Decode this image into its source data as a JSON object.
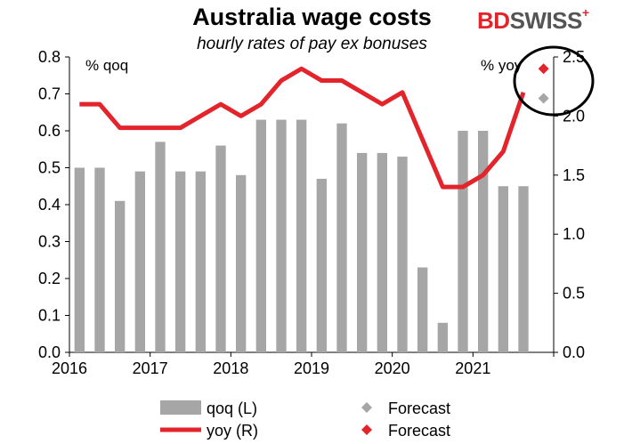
{
  "header": {
    "title": "Australia wage costs",
    "subtitle": "hourly rates of pay ex bonuses",
    "logo_bd": "BD",
    "logo_swiss": "SWISS",
    "logo_plus": "+"
  },
  "colors": {
    "bar": "#a6a6a6",
    "line": "#e3242b",
    "forecast_qoq": "#a6a6a6",
    "forecast_yoy": "#e3242b"
  },
  "chart_data": {
    "type": "bar",
    "left_unit": "% qoq",
    "right_unit": "% yoy",
    "ylim_left": [
      0,
      0.8
    ],
    "ylim_right": [
      0,
      2.5
    ],
    "yticks_left": [
      "0.0",
      "0.1",
      "0.2",
      "0.3",
      "0.4",
      "0.5",
      "0.6",
      "0.7",
      "0.8"
    ],
    "yticks_right": [
      "0.0",
      "0.5",
      "1.0",
      "1.5",
      "2.0",
      "2.5"
    ],
    "xticks": [
      "2016",
      "2017",
      "2018",
      "2019",
      "2020",
      "2021"
    ],
    "x": [
      "2016Q1",
      "2016Q2",
      "2016Q3",
      "2016Q4",
      "2017Q1",
      "2017Q2",
      "2017Q3",
      "2017Q4",
      "2018Q1",
      "2018Q2",
      "2018Q3",
      "2018Q4",
      "2019Q1",
      "2019Q2",
      "2019Q3",
      "2019Q4",
      "2020Q1",
      "2020Q2",
      "2020Q3",
      "2020Q4",
      "2021Q1",
      "2021Q2",
      "2021Q3"
    ],
    "series": [
      {
        "name": "qoq (L)",
        "type": "bar",
        "axis": "left",
        "values": [
          0.5,
          0.5,
          0.41,
          0.49,
          0.57,
          0.49,
          0.49,
          0.56,
          0.48,
          0.63,
          0.63,
          0.63,
          0.47,
          0.62,
          0.54,
          0.54,
          0.53,
          0.23,
          0.08,
          0.6,
          0.6,
          0.45,
          0.45
        ]
      },
      {
        "name": "yoy (R)",
        "type": "line",
        "axis": "right",
        "values": [
          2.1,
          2.1,
          1.9,
          1.9,
          1.9,
          1.9,
          2.0,
          2.1,
          2.0,
          2.1,
          2.3,
          2.4,
          2.3,
          2.3,
          2.2,
          2.1,
          2.2,
          1.8,
          1.4,
          1.4,
          1.5,
          1.7,
          2.2
        ]
      }
    ],
    "forecast": [
      {
        "name": "Forecast",
        "series": "qoq",
        "x": "2021Q4",
        "value": 2.15
      },
      {
        "name": "Forecast",
        "series": "yoy",
        "x": "2021Q4",
        "value": 2.4
      }
    ],
    "legend": [
      {
        "label": "qoq (L)",
        "kind": "bar"
      },
      {
        "label": "Forecast",
        "kind": "diamond-grey"
      },
      {
        "label": "yoy (R)",
        "kind": "line"
      },
      {
        "label": "Forecast",
        "kind": "diamond-red"
      }
    ],
    "legend_position": "bottom",
    "grid": false
  }
}
